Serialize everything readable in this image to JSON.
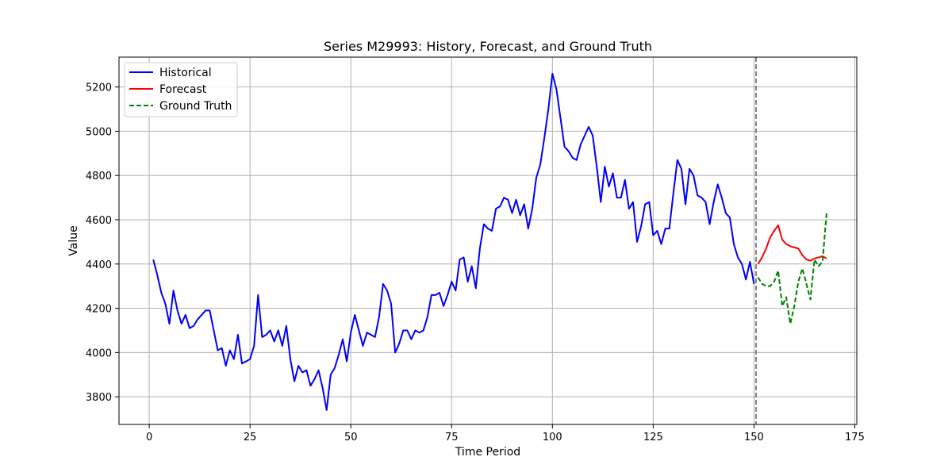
{
  "chart_data": {
    "type": "line",
    "title": "Series M29993: History, Forecast, and Ground Truth",
    "xlabel": "Time Period",
    "ylabel": "Value",
    "xlim": [
      -7.5,
      175.5
    ],
    "ylim": [
      3675,
      5335
    ],
    "xticks": [
      0,
      25,
      50,
      75,
      100,
      125,
      150,
      175
    ],
    "yticks": [
      3800,
      4000,
      4200,
      4400,
      4600,
      4800,
      5000,
      5200
    ],
    "grid": true,
    "legend_position": "top-left",
    "forecast_start_marker": 150.5,
    "series": [
      {
        "name": "Historical",
        "color": "#0000ff",
        "style": "solid",
        "x": [
          1,
          2,
          3,
          4,
          5,
          6,
          7,
          8,
          9,
          10,
          11,
          12,
          13,
          14,
          15,
          16,
          17,
          18,
          19,
          20,
          21,
          22,
          23,
          24,
          25,
          26,
          27,
          28,
          29,
          30,
          31,
          32,
          33,
          34,
          35,
          36,
          37,
          38,
          39,
          40,
          41,
          42,
          43,
          44,
          45,
          46,
          47,
          48,
          49,
          50,
          51,
          52,
          53,
          54,
          55,
          56,
          57,
          58,
          59,
          60,
          61,
          62,
          63,
          64,
          65,
          66,
          67,
          68,
          69,
          70,
          71,
          72,
          73,
          74,
          75,
          76,
          77,
          78,
          79,
          80,
          81,
          82,
          83,
          84,
          85,
          86,
          87,
          88,
          89,
          90,
          91,
          92,
          93,
          94,
          95,
          96,
          97,
          98,
          99,
          100,
          101,
          102,
          103,
          104,
          105,
          106,
          107,
          108,
          109,
          110,
          111,
          112,
          113,
          114,
          115,
          116,
          117,
          118,
          119,
          120,
          121,
          122,
          123,
          124,
          125,
          126,
          127,
          128,
          129,
          130,
          131,
          132,
          133,
          134,
          135,
          136,
          137,
          138,
          139,
          140,
          141,
          142,
          143,
          144,
          145,
          146,
          147,
          148,
          149,
          150
        ],
        "values": [
          4420,
          4350,
          4270,
          4220,
          4130,
          4280,
          4190,
          4130,
          4170,
          4110,
          4120,
          4150,
          4170,
          4190,
          4190,
          4100,
          4010,
          4020,
          3940,
          4010,
          3970,
          4080,
          3950,
          3960,
          3970,
          4030,
          4260,
          4070,
          4080,
          4100,
          4050,
          4100,
          4030,
          4120,
          3970,
          3870,
          3940,
          3910,
          3920,
          3850,
          3880,
          3920,
          3840,
          3740,
          3900,
          3930,
          3990,
          4060,
          3960,
          4090,
          4170,
          4100,
          4030,
          4090,
          4080,
          4070,
          4160,
          4310,
          4280,
          4220,
          4000,
          4040,
          4100,
          4100,
          4060,
          4100,
          4090,
          4100,
          4160,
          4260,
          4260,
          4270,
          4210,
          4260,
          4320,
          4280,
          4420,
          4430,
          4320,
          4390,
          4290,
          4470,
          4580,
          4560,
          4550,
          4650,
          4660,
          4700,
          4690,
          4630,
          4690,
          4620,
          4670,
          4560,
          4650,
          4790,
          4850,
          4970,
          5100,
          5260,
          5190,
          5060,
          4930,
          4910,
          4880,
          4870,
          4940,
          4980,
          5020,
          4980,
          4840,
          4680,
          4840,
          4750,
          4810,
          4700,
          4700,
          4780,
          4650,
          4680,
          4500,
          4570,
          4670,
          4680,
          4530,
          4550,
          4490,
          4560,
          4560,
          4720,
          4870,
          4830,
          4670,
          4830,
          4800,
          4710,
          4700,
          4680,
          4580,
          4680,
          4760,
          4700,
          4630,
          4610,
          4490,
          4430,
          4400,
          4330,
          4410,
          4310
        ]
      },
      {
        "name": "Forecast",
        "color": "#ff0000",
        "style": "solid",
        "x": [
          151,
          152,
          153,
          154,
          155,
          156,
          157,
          158,
          159,
          160,
          161,
          162,
          163,
          164,
          165,
          166,
          167,
          168
        ],
        "values": [
          4400,
          4430,
          4470,
          4520,
          4550,
          4575,
          4510,
          4490,
          4480,
          4475,
          4470,
          4440,
          4420,
          4415,
          4425,
          4430,
          4435,
          4425
        ]
      },
      {
        "name": "Ground Truth",
        "color": "#008000",
        "style": "dashed",
        "x": [
          151,
          152,
          153,
          154,
          155,
          156,
          157,
          158,
          159,
          160,
          161,
          162,
          163,
          164,
          165,
          166,
          167,
          168
        ],
        "values": [
          4340,
          4310,
          4300,
          4300,
          4320,
          4370,
          4210,
          4250,
          4130,
          4210,
          4320,
          4380,
          4310,
          4240,
          4420,
          4390,
          4410,
          4630
        ]
      }
    ]
  }
}
